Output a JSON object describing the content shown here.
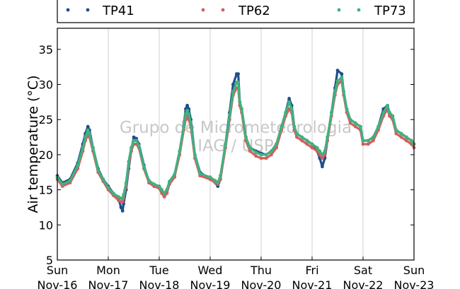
{
  "chart_data": {
    "type": "scatter",
    "title": "",
    "xlabel": "",
    "ylabel": "Air temperature (°C)",
    "ylim": [
      5,
      38
    ],
    "yticks": [
      5,
      10,
      15,
      20,
      25,
      30,
      35
    ],
    "xlim": [
      0,
      7
    ],
    "x_unit": "days since Nov-16 00:00",
    "xticks": [
      {
        "x": 0,
        "day": "Sun",
        "date": "Nov-16"
      },
      {
        "x": 1,
        "day": "Mon",
        "date": "Nov-17"
      },
      {
        "x": 2,
        "day": "Tue",
        "date": "Nov-18"
      },
      {
        "x": 3,
        "day": "Wed",
        "date": "Nov-19"
      },
      {
        "x": 4,
        "day": "Thu",
        "date": "Nov-20"
      },
      {
        "x": 5,
        "day": "Fri",
        "date": "Nov-21"
      },
      {
        "x": 6,
        "day": "Sat",
        "date": "Nov-22"
      },
      {
        "x": 7,
        "day": "Sun",
        "date": "Nov-23"
      }
    ],
    "grid": "vertical",
    "legend": {
      "placement": "top",
      "columns": 3
    },
    "watermark": [
      "Grupo de Micrometeorologia",
      "IAG / USP"
    ],
    "series": [
      {
        "name": "TP41",
        "color": "#1f4e8c",
        "points": [
          [
            0.0,
            17.0
          ],
          [
            0.1,
            16.0
          ],
          [
            0.25,
            16.5
          ],
          [
            0.4,
            18.8
          ],
          [
            0.5,
            21.5
          ],
          [
            0.55,
            23.0
          ],
          [
            0.6,
            24.0
          ],
          [
            0.63,
            23.5
          ],
          [
            0.7,
            21.0
          ],
          [
            0.8,
            18.0
          ],
          [
            0.9,
            16.5
          ],
          [
            1.0,
            15.5
          ],
          [
            1.1,
            14.5
          ],
          [
            1.2,
            13.8
          ],
          [
            1.25,
            12.5
          ],
          [
            1.28,
            12.0
          ],
          [
            1.3,
            13.0
          ],
          [
            1.35,
            15.0
          ],
          [
            1.4,
            18.0
          ],
          [
            1.45,
            20.5
          ],
          [
            1.5,
            22.5
          ],
          [
            1.55,
            22.3
          ],
          [
            1.6,
            21.5
          ],
          [
            1.7,
            18.5
          ],
          [
            1.8,
            16.0
          ],
          [
            1.9,
            15.5
          ],
          [
            2.0,
            15.5
          ],
          [
            2.05,
            15.0
          ],
          [
            2.1,
            14.3
          ],
          [
            2.15,
            15.0
          ],
          [
            2.2,
            16.0
          ],
          [
            2.3,
            17.0
          ],
          [
            2.4,
            20.5
          ],
          [
            2.48,
            24.0
          ],
          [
            2.52,
            26.5
          ],
          [
            2.55,
            27.0
          ],
          [
            2.58,
            26.5
          ],
          [
            2.62,
            25.0
          ],
          [
            2.7,
            20.0
          ],
          [
            2.8,
            17.5
          ],
          [
            3.0,
            16.5
          ],
          [
            3.1,
            16.0
          ],
          [
            3.15,
            15.5
          ],
          [
            3.2,
            16.5
          ],
          [
            3.3,
            21.5
          ],
          [
            3.38,
            26.0
          ],
          [
            3.45,
            30.0
          ],
          [
            3.52,
            31.5
          ],
          [
            3.55,
            31.5
          ],
          [
            3.58,
            27.5
          ],
          [
            3.62,
            26.5
          ],
          [
            3.7,
            22.5
          ],
          [
            3.78,
            21.0
          ],
          [
            3.9,
            20.5
          ],
          [
            4.0,
            20.2
          ],
          [
            4.1,
            20.0
          ],
          [
            4.2,
            20.5
          ],
          [
            4.3,
            21.5
          ],
          [
            4.4,
            24.0
          ],
          [
            4.48,
            26.0
          ],
          [
            4.55,
            28.0
          ],
          [
            4.6,
            27.0
          ],
          [
            4.65,
            24.0
          ],
          [
            4.7,
            23.0
          ],
          [
            4.8,
            22.5
          ],
          [
            4.9,
            22.0
          ],
          [
            5.0,
            21.5
          ],
          [
            5.1,
            20.5
          ],
          [
            5.15,
            19.5
          ],
          [
            5.2,
            18.3
          ],
          [
            5.25,
            19.5
          ],
          [
            5.3,
            22.0
          ],
          [
            5.38,
            26.0
          ],
          [
            5.45,
            29.5
          ],
          [
            5.5,
            32.0
          ],
          [
            5.58,
            31.5
          ],
          [
            5.62,
            29.0
          ],
          [
            5.68,
            26.5
          ],
          [
            5.75,
            25.0
          ],
          [
            5.85,
            24.5
          ],
          [
            5.95,
            24.0
          ],
          [
            6.0,
            22.0
          ],
          [
            6.1,
            22.0
          ],
          [
            6.2,
            22.5
          ],
          [
            6.3,
            24.0
          ],
          [
            6.4,
            26.5
          ],
          [
            6.48,
            27.0
          ],
          [
            6.52,
            26.0
          ],
          [
            6.58,
            25.5
          ],
          [
            6.65,
            23.5
          ],
          [
            6.75,
            23.0
          ],
          [
            6.85,
            22.5
          ],
          [
            6.95,
            22.0
          ],
          [
            7.0,
            21.5
          ]
        ]
      },
      {
        "name": "TP62",
        "color": "#d1605e",
        "points": [
          [
            0.0,
            16.5
          ],
          [
            0.1,
            15.5
          ],
          [
            0.25,
            16.0
          ],
          [
            0.4,
            18.0
          ],
          [
            0.5,
            20.5
          ],
          [
            0.55,
            22.0
          ],
          [
            0.6,
            22.8
          ],
          [
            0.63,
            22.5
          ],
          [
            0.7,
            20.5
          ],
          [
            0.8,
            17.5
          ],
          [
            0.9,
            16.2
          ],
          [
            1.0,
            15.0
          ],
          [
            1.1,
            14.2
          ],
          [
            1.2,
            13.5
          ],
          [
            1.25,
            13.3
          ],
          [
            1.28,
            13.3
          ],
          [
            1.3,
            13.8
          ],
          [
            1.35,
            15.5
          ],
          [
            1.4,
            18.5
          ],
          [
            1.45,
            20.5
          ],
          [
            1.5,
            21.5
          ],
          [
            1.55,
            21.5
          ],
          [
            1.6,
            21.0
          ],
          [
            1.7,
            18.0
          ],
          [
            1.8,
            16.0
          ],
          [
            1.9,
            15.5
          ],
          [
            2.0,
            15.2
          ],
          [
            2.05,
            14.5
          ],
          [
            2.1,
            14.0
          ],
          [
            2.15,
            14.5
          ],
          [
            2.2,
            15.8
          ],
          [
            2.3,
            16.8
          ],
          [
            2.4,
            20.0
          ],
          [
            2.48,
            23.5
          ],
          [
            2.52,
            25.0
          ],
          [
            2.55,
            25.5
          ],
          [
            2.58,
            25.0
          ],
          [
            2.62,
            24.0
          ],
          [
            2.7,
            19.5
          ],
          [
            2.8,
            17.0
          ],
          [
            3.0,
            16.5
          ],
          [
            3.1,
            16.0
          ],
          [
            3.15,
            15.8
          ],
          [
            3.2,
            16.5
          ],
          [
            3.3,
            21.0
          ],
          [
            3.38,
            25.0
          ],
          [
            3.45,
            28.5
          ],
          [
            3.52,
            29.5
          ],
          [
            3.55,
            29.5
          ],
          [
            3.58,
            27.0
          ],
          [
            3.62,
            26.0
          ],
          [
            3.7,
            22.0
          ],
          [
            3.78,
            20.5
          ],
          [
            3.9,
            19.8
          ],
          [
            4.0,
            19.5
          ],
          [
            4.1,
            19.5
          ],
          [
            4.2,
            20.0
          ],
          [
            4.3,
            21.0
          ],
          [
            4.4,
            23.5
          ],
          [
            4.48,
            25.5
          ],
          [
            4.55,
            26.5
          ],
          [
            4.6,
            26.0
          ],
          [
            4.65,
            23.5
          ],
          [
            4.7,
            22.5
          ],
          [
            4.8,
            22.0
          ],
          [
            4.9,
            21.5
          ],
          [
            5.0,
            21.0
          ],
          [
            5.1,
            20.5
          ],
          [
            5.15,
            20.0
          ],
          [
            5.2,
            19.5
          ],
          [
            5.25,
            20.0
          ],
          [
            5.3,
            22.0
          ],
          [
            5.38,
            25.5
          ],
          [
            5.45,
            28.5
          ],
          [
            5.5,
            30.0
          ],
          [
            5.58,
            30.5
          ],
          [
            5.62,
            28.5
          ],
          [
            5.68,
            26.0
          ],
          [
            5.75,
            24.5
          ],
          [
            5.85,
            24.0
          ],
          [
            5.95,
            23.5
          ],
          [
            6.0,
            21.5
          ],
          [
            6.1,
            21.5
          ],
          [
            6.2,
            22.0
          ],
          [
            6.3,
            23.5
          ],
          [
            6.4,
            25.5
          ],
          [
            6.48,
            26.5
          ],
          [
            6.52,
            25.5
          ],
          [
            6.58,
            25.0
          ],
          [
            6.65,
            23.0
          ],
          [
            6.75,
            22.5
          ],
          [
            6.85,
            22.0
          ],
          [
            6.95,
            21.5
          ],
          [
            7.0,
            21.0
          ]
        ]
      },
      {
        "name": "TP73",
        "color": "#3fb27f",
        "points": [
          [
            0.0,
            16.8
          ],
          [
            0.1,
            15.8
          ],
          [
            0.25,
            16.3
          ],
          [
            0.4,
            18.5
          ],
          [
            0.5,
            21.0
          ],
          [
            0.55,
            22.5
          ],
          [
            0.6,
            23.5
          ],
          [
            0.63,
            23.0
          ],
          [
            0.7,
            21.0
          ],
          [
            0.8,
            17.8
          ],
          [
            0.9,
            16.5
          ],
          [
            1.0,
            15.3
          ],
          [
            1.1,
            14.5
          ],
          [
            1.2,
            14.0
          ],
          [
            1.25,
            13.8
          ],
          [
            1.28,
            13.8
          ],
          [
            1.3,
            14.3
          ],
          [
            1.35,
            16.0
          ],
          [
            1.4,
            19.0
          ],
          [
            1.45,
            21.0
          ],
          [
            1.5,
            22.0
          ],
          [
            1.55,
            22.0
          ],
          [
            1.6,
            21.3
          ],
          [
            1.7,
            18.3
          ],
          [
            1.8,
            16.3
          ],
          [
            1.9,
            15.8
          ],
          [
            2.0,
            15.5
          ],
          [
            2.05,
            15.0
          ],
          [
            2.1,
            14.5
          ],
          [
            2.15,
            15.0
          ],
          [
            2.2,
            16.2
          ],
          [
            2.3,
            17.2
          ],
          [
            2.4,
            20.5
          ],
          [
            2.48,
            24.0
          ],
          [
            2.52,
            25.8
          ],
          [
            2.55,
            26.3
          ],
          [
            2.58,
            25.8
          ],
          [
            2.62,
            24.5
          ],
          [
            2.7,
            20.0
          ],
          [
            2.8,
            17.3
          ],
          [
            3.0,
            16.8
          ],
          [
            3.1,
            16.3
          ],
          [
            3.15,
            16.0
          ],
          [
            3.2,
            17.0
          ],
          [
            3.3,
            21.5
          ],
          [
            3.38,
            25.5
          ],
          [
            3.45,
            29.0
          ],
          [
            3.52,
            30.3
          ],
          [
            3.55,
            30.3
          ],
          [
            3.58,
            27.5
          ],
          [
            3.62,
            26.5
          ],
          [
            3.7,
            22.5
          ],
          [
            3.78,
            21.0
          ],
          [
            3.9,
            20.3
          ],
          [
            4.0,
            20.0
          ],
          [
            4.1,
            20.0
          ],
          [
            4.2,
            20.5
          ],
          [
            4.3,
            21.5
          ],
          [
            4.4,
            24.0
          ],
          [
            4.48,
            26.0
          ],
          [
            4.55,
            27.5
          ],
          [
            4.6,
            26.5
          ],
          [
            4.65,
            24.0
          ],
          [
            4.7,
            23.0
          ],
          [
            4.8,
            22.5
          ],
          [
            4.9,
            22.0
          ],
          [
            5.0,
            21.5
          ],
          [
            5.1,
            21.0
          ],
          [
            5.15,
            20.5
          ],
          [
            5.2,
            20.0
          ],
          [
            5.25,
            20.5
          ],
          [
            5.3,
            22.5
          ],
          [
            5.38,
            26.0
          ],
          [
            5.45,
            29.0
          ],
          [
            5.5,
            30.5
          ],
          [
            5.58,
            31.0
          ],
          [
            5.62,
            29.0
          ],
          [
            5.68,
            26.5
          ],
          [
            5.75,
            25.0
          ],
          [
            5.85,
            24.5
          ],
          [
            5.95,
            24.0
          ],
          [
            6.0,
            22.0
          ],
          [
            6.1,
            22.0
          ],
          [
            6.2,
            22.5
          ],
          [
            6.3,
            24.0
          ],
          [
            6.4,
            26.0
          ],
          [
            6.48,
            27.0
          ],
          [
            6.52,
            26.0
          ],
          [
            6.58,
            25.5
          ],
          [
            6.65,
            23.5
          ],
          [
            6.75,
            23.0
          ],
          [
            6.85,
            22.5
          ],
          [
            6.95,
            22.0
          ],
          [
            7.0,
            21.5
          ]
        ]
      }
    ]
  }
}
